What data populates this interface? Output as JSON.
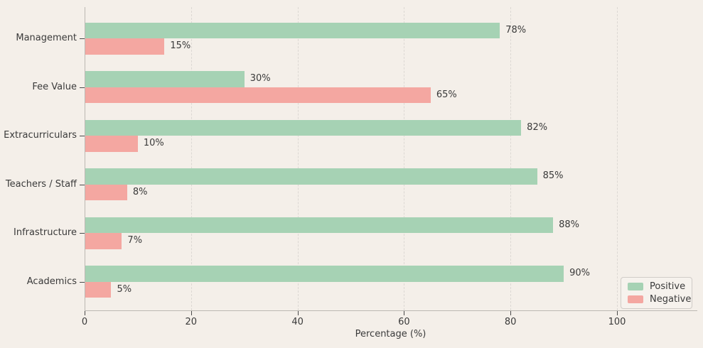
{
  "chart_data": {
    "type": "bar",
    "orientation": "horizontal",
    "xlabel": "Percentage (%)",
    "categories": [
      "Management",
      "Fee Value",
      "Extracurriculars",
      "Teachers / Staff",
      "Infrastructure",
      "Academics"
    ],
    "series": [
      {
        "name": "Positive",
        "color": "#a6d2b4",
        "values": [
          78,
          30,
          82,
          85,
          88,
          90
        ]
      },
      {
        "name": "Negative",
        "color": "#f4a7a1",
        "values": [
          15,
          65,
          10,
          8,
          7,
          5
        ]
      }
    ],
    "value_suffix": "%",
    "x_ticks": [
      0,
      20,
      40,
      60,
      80,
      100
    ],
    "xlim": [
      0,
      115
    ],
    "grid": "vertical-dashed",
    "legend": {
      "position": "lower-right",
      "entries": [
        "Positive",
        "Negative"
      ]
    },
    "colors": {
      "background": "#f4efe9",
      "text": "#3a3a3a",
      "grid": "#dcd8d3",
      "spine": "#bcb8b3",
      "tick": "#4a4a4a",
      "legend_bg": "#f6f2ed",
      "legend_border": "#d0ccc7"
    }
  }
}
